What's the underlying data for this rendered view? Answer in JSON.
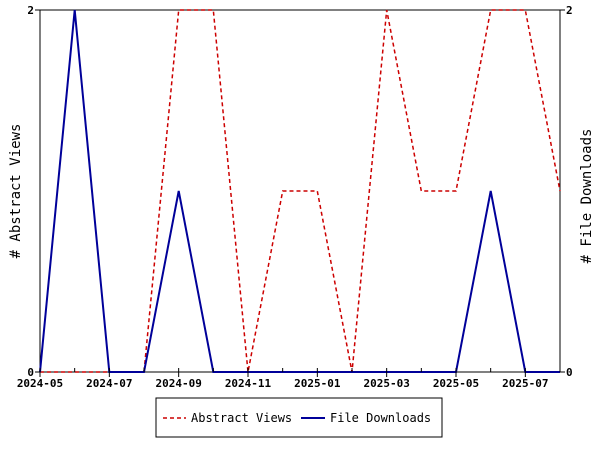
{
  "chart_data": {
    "type": "line",
    "x": [
      "2024-05",
      "2024-06",
      "2024-07",
      "2024-08",
      "2024-09",
      "2024-10",
      "2024-11",
      "2024-12",
      "2025-01",
      "2025-02",
      "2025-03",
      "2025-04",
      "2025-05",
      "2025-06",
      "2025-07",
      "2025-08"
    ],
    "x_tick_labels": [
      "2024-05",
      "2024-07",
      "2024-09",
      "2024-11",
      "2025-01",
      "2025-03",
      "2025-05",
      "2025-07"
    ],
    "series": [
      {
        "name": "Abstract Views",
        "axis": "left",
        "color": "#cc0000",
        "dash": true,
        "values": [
          0,
          0,
          0,
          0,
          2,
          2,
          0,
          1,
          1,
          0,
          2,
          1,
          1,
          2,
          2,
          1
        ]
      },
      {
        "name": "File Downloads",
        "axis": "right",
        "color": "#000099",
        "dash": false,
        "values": [
          0,
          2,
          0,
          0,
          1,
          0,
          0,
          0,
          0,
          0,
          0,
          0,
          0,
          1,
          0,
          0
        ]
      }
    ],
    "ylabel_left": "# Abstract Views",
    "ylabel_right": "# File Downloads",
    "ylim_left": [
      0,
      2
    ],
    "ylim_right": [
      0,
      2
    ],
    "y_tick_labels_left": [
      "0",
      "2"
    ],
    "y_tick_labels_right": [
      "0",
      "2"
    ],
    "grid": false,
    "legend_position": "bottom-center"
  }
}
